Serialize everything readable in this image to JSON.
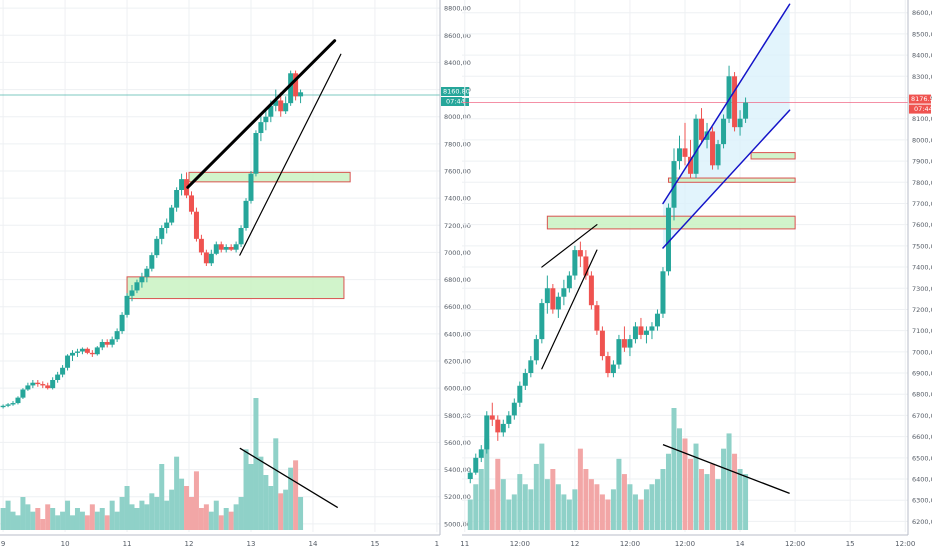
{
  "chart_data": [
    {
      "type": "candlestick",
      "title": "",
      "xlabel": "",
      "ylabel": "",
      "ylim": [
        4940,
        8860
      ],
      "grid": true,
      "x_tick_labels": [
        "9",
        "10",
        "11",
        "12",
        "13",
        "14",
        "15",
        "1"
      ],
      "x_tick_positions": [
        0,
        1,
        2,
        3,
        4,
        5,
        6,
        7
      ],
      "xlim": [
        -0.05,
        7.05
      ],
      "y_ticks": [
        5000,
        5200,
        5400,
        5600,
        5800,
        6000,
        6200,
        6400,
        6600,
        6800,
        7000,
        7200,
        7400,
        7600,
        7800,
        8000,
        8200,
        8400,
        8600,
        8800
      ],
      "price_label": "8160.80",
      "time_label": "07:44",
      "last_price": 8160,
      "candles": [
        [
          0.0,
          5860,
          5880,
          5850,
          5870
        ],
        [
          0.08,
          5870,
          5890,
          5860,
          5880
        ],
        [
          0.16,
          5880,
          5905,
          5870,
          5890
        ],
        [
          0.24,
          5890,
          5940,
          5880,
          5930
        ],
        [
          0.32,
          5930,
          6000,
          5920,
          5990
        ],
        [
          0.4,
          5990,
          6040,
          5980,
          6020
        ],
        [
          0.48,
          6020,
          6060,
          6000,
          6040
        ],
        [
          0.56,
          6040,
          6060,
          6010,
          6030
        ],
        [
          0.64,
          6030,
          6050,
          6000,
          6020
        ],
        [
          0.72,
          6020,
          6040,
          5990,
          6000
        ],
        [
          0.8,
          6000,
          6080,
          5990,
          6060
        ],
        [
          0.88,
          6060,
          6120,
          6040,
          6100
        ],
        [
          0.96,
          6100,
          6170,
          6080,
          6150
        ],
        [
          1.04,
          6150,
          6250,
          6130,
          6240
        ],
        [
          1.12,
          6240,
          6280,
          6200,
          6260
        ],
        [
          1.2,
          6260,
          6290,
          6230,
          6270
        ],
        [
          1.28,
          6270,
          6300,
          6250,
          6290
        ],
        [
          1.36,
          6290,
          6300,
          6250,
          6260
        ],
        [
          1.44,
          6260,
          6280,
          6230,
          6250
        ],
        [
          1.52,
          6250,
          6310,
          6240,
          6300
        ],
        [
          1.6,
          6300,
          6360,
          6280,
          6340
        ],
        [
          1.68,
          6340,
          6360,
          6300,
          6320
        ],
        [
          1.76,
          6320,
          6380,
          6300,
          6360
        ],
        [
          1.84,
          6360,
          6440,
          6340,
          6420
        ],
        [
          1.92,
          6420,
          6560,
          6400,
          6540
        ],
        [
          2.0,
          6540,
          6700,
          6520,
          6680
        ],
        [
          2.08,
          6680,
          6760,
          6640,
          6720
        ],
        [
          2.16,
          6720,
          6800,
          6700,
          6780
        ],
        [
          2.24,
          6780,
          6850,
          6740,
          6820
        ],
        [
          2.32,
          6820,
          6900,
          6780,
          6880
        ],
        [
          2.4,
          6880,
          7000,
          6860,
          6980
        ],
        [
          2.48,
          6980,
          7120,
          6960,
          7100
        ],
        [
          2.56,
          7100,
          7200,
          7060,
          7180
        ],
        [
          2.64,
          7180,
          7250,
          7140,
          7220
        ],
        [
          2.72,
          7220,
          7350,
          7200,
          7330
        ],
        [
          2.8,
          7330,
          7480,
          7300,
          7460
        ],
        [
          2.88,
          7460,
          7580,
          7420,
          7540
        ],
        [
          2.96,
          7540,
          7590,
          7400,
          7420
        ],
        [
          3.04,
          7420,
          7450,
          7280,
          7300
        ],
        [
          3.12,
          7300,
          7330,
          7080,
          7100
        ],
        [
          3.2,
          7100,
          7130,
          6980,
          7000
        ],
        [
          3.28,
          7000,
          7020,
          6900,
          6920
        ],
        [
          3.36,
          6920,
          7020,
          6900,
          6990
        ],
        [
          3.44,
          6990,
          7080,
          6980,
          7060
        ],
        [
          3.52,
          7060,
          7080,
          7000,
          7020
        ],
        [
          3.6,
          7020,
          7060,
          7000,
          7040
        ],
        [
          3.68,
          7040,
          7060,
          7010,
          7020
        ],
        [
          3.76,
          7020,
          7080,
          7000,
          7060
        ],
        [
          3.84,
          7060,
          7200,
          7040,
          7180
        ],
        [
          3.92,
          7180,
          7400,
          7160,
          7380
        ],
        [
          4.0,
          7380,
          7600,
          7360,
          7580
        ],
        [
          4.08,
          7580,
          7900,
          7560,
          7880
        ],
        [
          4.16,
          7880,
          8020,
          7820,
          7960
        ],
        [
          4.24,
          7960,
          8060,
          7900,
          8000
        ],
        [
          4.32,
          8000,
          8120,
          7960,
          8080
        ],
        [
          4.4,
          8080,
          8200,
          8040,
          8120
        ],
        [
          4.48,
          8120,
          8180,
          8000,
          8040
        ],
        [
          4.56,
          8040,
          8150,
          8020,
          8100
        ],
        [
          4.64,
          8100,
          8340,
          8080,
          8320
        ],
        [
          4.72,
          8320,
          8340,
          8120,
          8150
        ],
        [
          4.8,
          8150,
          8200,
          8100,
          8180
        ]
      ],
      "volumes": [
        60,
        80,
        50,
        40,
        90,
        70,
        50,
        60,
        30,
        70,
        60,
        40,
        50,
        80,
        40,
        60,
        50,
        40,
        70,
        50,
        60,
        40,
        80,
        50,
        90,
        120,
        70,
        60,
        80,
        70,
        100,
        90,
        180,
        80,
        110,
        200,
        140,
        120,
        90,
        160,
        60,
        70,
        50,
        80,
        40,
        60,
        50,
        70,
        90,
        220,
        180,
        360,
        200,
        150,
        120,
        250,
        100,
        110,
        170,
        190,
        90
      ],
      "annotations": [
        {
          "kind": "trendline",
          "x1": 2.98,
          "y1": 7480,
          "x2": 5.35,
          "y2": 8560,
          "color": "#000000",
          "width": 3
        },
        {
          "kind": "trendline",
          "x1": 3.82,
          "y1": 6980,
          "x2": 5.45,
          "y2": 8460,
          "color": "#000000",
          "width": 1.2
        },
        {
          "kind": "zone",
          "x1": 3.0,
          "x2": 5.6,
          "y1": 7520,
          "y2": 7590
        },
        {
          "kind": "zone",
          "x1": 2.0,
          "x2": 5.5,
          "y1": 6660,
          "y2": 6820
        },
        {
          "kind": "hline",
          "y": 8160,
          "color": "#26a69a"
        }
      ],
      "volume_trendline": {
        "x1": 3.82,
        "x2": 5.4,
        "f1": 0.62,
        "f2": 0.17
      }
    },
    {
      "type": "candlestick",
      "title": "",
      "xlabel": "",
      "ylabel": "",
      "ylim": [
        6150,
        8660
      ],
      "grid": true,
      "x_tick_labels": [
        "11",
        "12:00",
        "12",
        "12:00",
        "12:00",
        "14",
        "12:00",
        "15",
        "12:00"
      ],
      "x_tick_positions": [
        0,
        1,
        2,
        3,
        4,
        5,
        6,
        7,
        8
      ],
      "xlim": [
        -0.05,
        8.05
      ],
      "y_ticks": [
        6200,
        6300,
        6400,
        6500,
        6600,
        6700,
        6800,
        6900,
        7000,
        7100,
        7200,
        7300,
        7400,
        7500,
        7600,
        7700,
        7800,
        7900,
        8000,
        8100,
        8200,
        8300,
        8400,
        8500,
        8600
      ],
      "price_label": "8176.5",
      "time_label": "07:44",
      "last_price": 8176,
      "candles": [
        [
          0.1,
          6400,
          6450,
          6380,
          6430
        ],
        [
          0.2,
          6430,
          6520,
          6420,
          6500
        ],
        [
          0.3,
          6500,
          6560,
          6480,
          6540
        ],
        [
          0.4,
          6540,
          6720,
          6520,
          6700
        ],
        [
          0.5,
          6700,
          6760,
          6650,
          6680
        ],
        [
          0.6,
          6680,
          6700,
          6580,
          6620
        ],
        [
          0.7,
          6620,
          6680,
          6600,
          6660
        ],
        [
          0.8,
          6660,
          6720,
          6640,
          6700
        ],
        [
          0.9,
          6700,
          6780,
          6680,
          6760
        ],
        [
          1.0,
          6760,
          6860,
          6740,
          6840
        ],
        [
          1.1,
          6840,
          6920,
          6820,
          6900
        ],
        [
          1.2,
          6900,
          6980,
          6880,
          6960
        ],
        [
          1.3,
          6960,
          7080,
          6940,
          7060
        ],
        [
          1.4,
          7060,
          7250,
          7040,
          7230
        ],
        [
          1.5,
          7230,
          7360,
          7180,
          7300
        ],
        [
          1.6,
          7300,
          7320,
          7180,
          7200
        ],
        [
          1.7,
          7200,
          7280,
          7160,
          7260
        ],
        [
          1.8,
          7260,
          7340,
          7220,
          7300
        ],
        [
          1.9,
          7300,
          7380,
          7280,
          7360
        ],
        [
          2.0,
          7360,
          7500,
          7340,
          7480
        ],
        [
          2.1,
          7480,
          7520,
          7400,
          7450
        ],
        [
          2.2,
          7450,
          7480,
          7340,
          7360
        ],
        [
          2.3,
          7360,
          7380,
          7200,
          7220
        ],
        [
          2.4,
          7220,
          7240,
          7080,
          7100
        ],
        [
          2.5,
          7100,
          7120,
          6960,
          6980
        ],
        [
          2.6,
          6980,
          7000,
          6880,
          6900
        ],
        [
          2.7,
          6900,
          6960,
          6880,
          6940
        ],
        [
          2.8,
          6940,
          7080,
          6920,
          7060
        ],
        [
          2.9,
          7060,
          7120,
          7000,
          7020
        ],
        [
          3.0,
          7020,
          7080,
          6980,
          7060
        ],
        [
          3.1,
          7060,
          7140,
          7040,
          7120
        ],
        [
          3.2,
          7120,
          7160,
          7060,
          7080
        ],
        [
          3.3,
          7080,
          7120,
          7040,
          7100
        ],
        [
          3.4,
          7100,
          7140,
          7060,
          7120
        ],
        [
          3.5,
          7120,
          7200,
          7100,
          7180
        ],
        [
          3.6,
          7180,
          7400,
          7160,
          7380
        ],
        [
          3.7,
          7380,
          7700,
          7360,
          7680
        ],
        [
          3.8,
          7680,
          7960,
          7620,
          7900
        ],
        [
          3.9,
          7900,
          8020,
          7860,
          7960
        ],
        [
          4.0,
          7960,
          8080,
          7880,
          7920
        ],
        [
          4.1,
          7920,
          8000,
          7820,
          7840
        ],
        [
          4.2,
          7840,
          8120,
          7820,
          8100
        ],
        [
          4.3,
          8100,
          8150,
          7980,
          8000
        ],
        [
          4.4,
          8000,
          8080,
          7960,
          8040
        ],
        [
          4.5,
          8040,
          8060,
          7860,
          7880
        ],
        [
          4.6,
          7880,
          8000,
          7860,
          7980
        ],
        [
          4.7,
          7980,
          8120,
          7960,
          8100
        ],
        [
          4.8,
          8100,
          8350,
          8080,
          8300
        ],
        [
          4.9,
          8300,
          8320,
          8040,
          8060
        ],
        [
          5.0,
          8060,
          8140,
          8020,
          8100
        ],
        [
          5.1,
          8100,
          8200,
          8080,
          8176
        ]
      ],
      "volumes": [
        60,
        90,
        120,
        180,
        80,
        140,
        100,
        60,
        70,
        110,
        90,
        80,
        130,
        170,
        100,
        120,
        90,
        70,
        60,
        80,
        160,
        120,
        100,
        90,
        70,
        60,
        80,
        140,
        110,
        90,
        70,
        60,
        80,
        90,
        100,
        120,
        150,
        240,
        200,
        180,
        140,
        170,
        120,
        110,
        130,
        100,
        160,
        190,
        150,
        120,
        110
      ],
      "annotations": [
        {
          "kind": "trendline",
          "x1": 3.6,
          "y1": 7700,
          "x2": 5.9,
          "y2": 8640,
          "color": "#1414c8",
          "width": 1.5
        },
        {
          "kind": "trendline",
          "x1": 3.6,
          "y1": 7490,
          "x2": 5.9,
          "y2": 8140,
          "color": "#1414c8",
          "width": 1.5
        },
        {
          "kind": "channel_fill",
          "x1": 3.6,
          "x2": 5.9,
          "y_top_start": 7700,
          "y_top_end": 8640,
          "y_bot_start": 7490,
          "y_bot_end": 8140
        },
        {
          "kind": "trendline",
          "x1": 1.4,
          "y1": 7400,
          "x2": 2.4,
          "y2": 7600,
          "color": "#000000",
          "width": 1.2
        },
        {
          "kind": "trendline",
          "x1": 1.4,
          "y1": 6920,
          "x2": 2.4,
          "y2": 7480,
          "color": "#000000",
          "width": 1.2
        },
        {
          "kind": "zone",
          "x1": 5.2,
          "x2": 6.0,
          "y1": 7910,
          "y2": 7940
        },
        {
          "kind": "zone",
          "x1": 3.7,
          "x2": 6.0,
          "y1": 7800,
          "y2": 7820
        },
        {
          "kind": "zone",
          "x1": 1.5,
          "x2": 6.0,
          "y1": 7580,
          "y2": 7640
        },
        {
          "kind": "hline",
          "y": 8176,
          "color": "#f06080"
        }
      ],
      "volume_trendline": {
        "x1": 3.6,
        "x2": 5.9,
        "f1": 0.7,
        "f2": 0.3
      }
    }
  ]
}
